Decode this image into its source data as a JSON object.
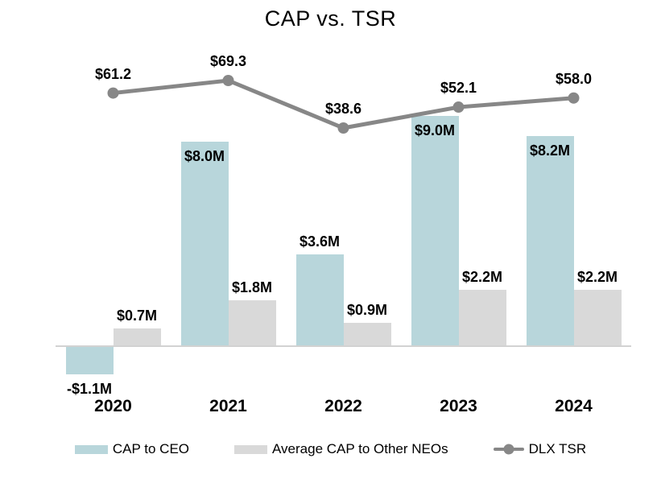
{
  "title": "CAP vs. TSR",
  "colors": {
    "cap_ceo": "#b8d6db",
    "cap_neo": "#d9d9d9",
    "tsr_line": "#878787",
    "axis_line": "#d2d2d2",
    "text": "#000000",
    "background": "#ffffff"
  },
  "chart_data": {
    "type": "bar+line",
    "title": "CAP vs. TSR",
    "categories": [
      "2020",
      "2021",
      "2022",
      "2023",
      "2024"
    ],
    "series": [
      {
        "name": "CAP to CEO",
        "type": "bar",
        "values": [
          -1.1,
          8.0,
          3.6,
          9.0,
          8.2
        ],
        "labels": [
          "-$1.1M",
          "$8.0M",
          "$3.6M",
          "$9.0M",
          "$8.2M"
        ],
        "color_key": "cap_ceo"
      },
      {
        "name": "Average CAP to Other NEOs",
        "type": "bar",
        "values": [
          0.7,
          1.8,
          0.9,
          2.2,
          2.2
        ],
        "labels": [
          "$0.7M",
          "$1.8M",
          "$0.9M",
          "$2.2M",
          "$2.2M"
        ],
        "color_key": "cap_neo"
      },
      {
        "name": "DLX TSR",
        "type": "line",
        "values": [
          61.2,
          69.3,
          38.6,
          52.1,
          58.0
        ],
        "labels": [
          "$61.2",
          "$69.3",
          "$38.6",
          "$52.1",
          "$58.0"
        ],
        "color_key": "tsr_line"
      }
    ],
    "xlabel": "",
    "ylabel": "",
    "value_axis_visible": false,
    "grid": false,
    "legend_position": "bottom"
  },
  "legend": {
    "items": [
      {
        "label": "CAP to CEO",
        "swatch": "bar",
        "color_key": "cap_ceo"
      },
      {
        "label": "Average CAP to Other NEOs",
        "swatch": "bar",
        "color_key": "cap_neo"
      },
      {
        "label": "DLX TSR",
        "swatch": "line-marker",
        "color_key": "tsr_line"
      }
    ]
  }
}
